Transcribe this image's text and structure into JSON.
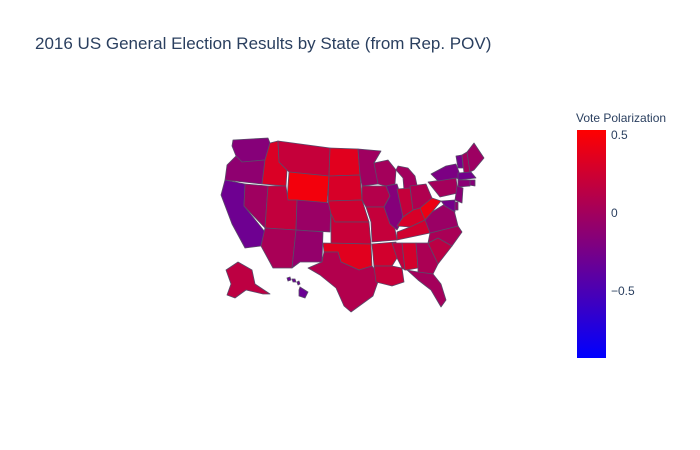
{
  "title": "2016 US General Election Results by State (from Rep. POV)",
  "colorbar": {
    "title": "Vote Polarization",
    "min": -0.93,
    "max": 0.53,
    "ticks": [
      {
        "label": "0.5",
        "value": 0.5
      },
      {
        "label": "0",
        "value": 0
      },
      {
        "label": "−0.5",
        "value": -0.5
      }
    ],
    "colors": {
      "high": "#ff0000",
      "low": "#0000ff"
    }
  },
  "map": {
    "type": "choropleth",
    "scope": "usa",
    "border_color": "#5a4a6a",
    "states": [
      {
        "id": "WA",
        "value": -0.16
      },
      {
        "id": "OR",
        "value": -0.11
      },
      {
        "id": "CA",
        "value": -0.3
      },
      {
        "id": "NV",
        "value": -0.02
      },
      {
        "id": "ID",
        "value": 0.32
      },
      {
        "id": "MT",
        "value": 0.2
      },
      {
        "id": "WY",
        "value": 0.46
      },
      {
        "id": "UT",
        "value": 0.18
      },
      {
        "id": "AZ",
        "value": 0.04
      },
      {
        "id": "CO",
        "value": -0.05
      },
      {
        "id": "NM",
        "value": -0.08
      },
      {
        "id": "ND",
        "value": 0.36
      },
      {
        "id": "SD",
        "value": 0.3
      },
      {
        "id": "NE",
        "value": 0.25
      },
      {
        "id": "KS",
        "value": 0.21
      },
      {
        "id": "OK",
        "value": 0.36
      },
      {
        "id": "TX",
        "value": 0.09
      },
      {
        "id": "MN",
        "value": -0.02
      },
      {
        "id": "IA",
        "value": 0.1
      },
      {
        "id": "MO",
        "value": 0.19
      },
      {
        "id": "AR",
        "value": 0.27
      },
      {
        "id": "LA",
        "value": 0.2
      },
      {
        "id": "WI",
        "value": 0.01
      },
      {
        "id": "IL",
        "value": -0.17
      },
      {
        "id": "MI",
        "value": 0.0
      },
      {
        "id": "IN",
        "value": 0.19
      },
      {
        "id": "OH",
        "value": 0.08
      },
      {
        "id": "KY",
        "value": 0.3
      },
      {
        "id": "TN",
        "value": 0.26
      },
      {
        "id": "MS",
        "value": 0.18
      },
      {
        "id": "AL",
        "value": 0.28
      },
      {
        "id": "GA",
        "value": 0.05
      },
      {
        "id": "FL",
        "value": 0.01
      },
      {
        "id": "SC",
        "value": 0.14
      },
      {
        "id": "NC",
        "value": 0.04
      },
      {
        "id": "VA",
        "value": -0.05
      },
      {
        "id": "WV",
        "value": 0.42
      },
      {
        "id": "PA",
        "value": 0.01
      },
      {
        "id": "NY",
        "value": -0.22
      },
      {
        "id": "VT",
        "value": -0.26
      },
      {
        "id": "NH",
        "value": 0.0
      },
      {
        "id": "ME",
        "value": -0.03
      },
      {
        "id": "MA",
        "value": -0.27
      },
      {
        "id": "RI",
        "value": -0.16
      },
      {
        "id": "CT",
        "value": -0.14
      },
      {
        "id": "NJ",
        "value": -0.14
      },
      {
        "id": "DE",
        "value": -0.11
      },
      {
        "id": "MD",
        "value": -0.26
      },
      {
        "id": "AK",
        "value": 0.15
      },
      {
        "id": "HI",
        "value": -0.32
      }
    ]
  }
}
